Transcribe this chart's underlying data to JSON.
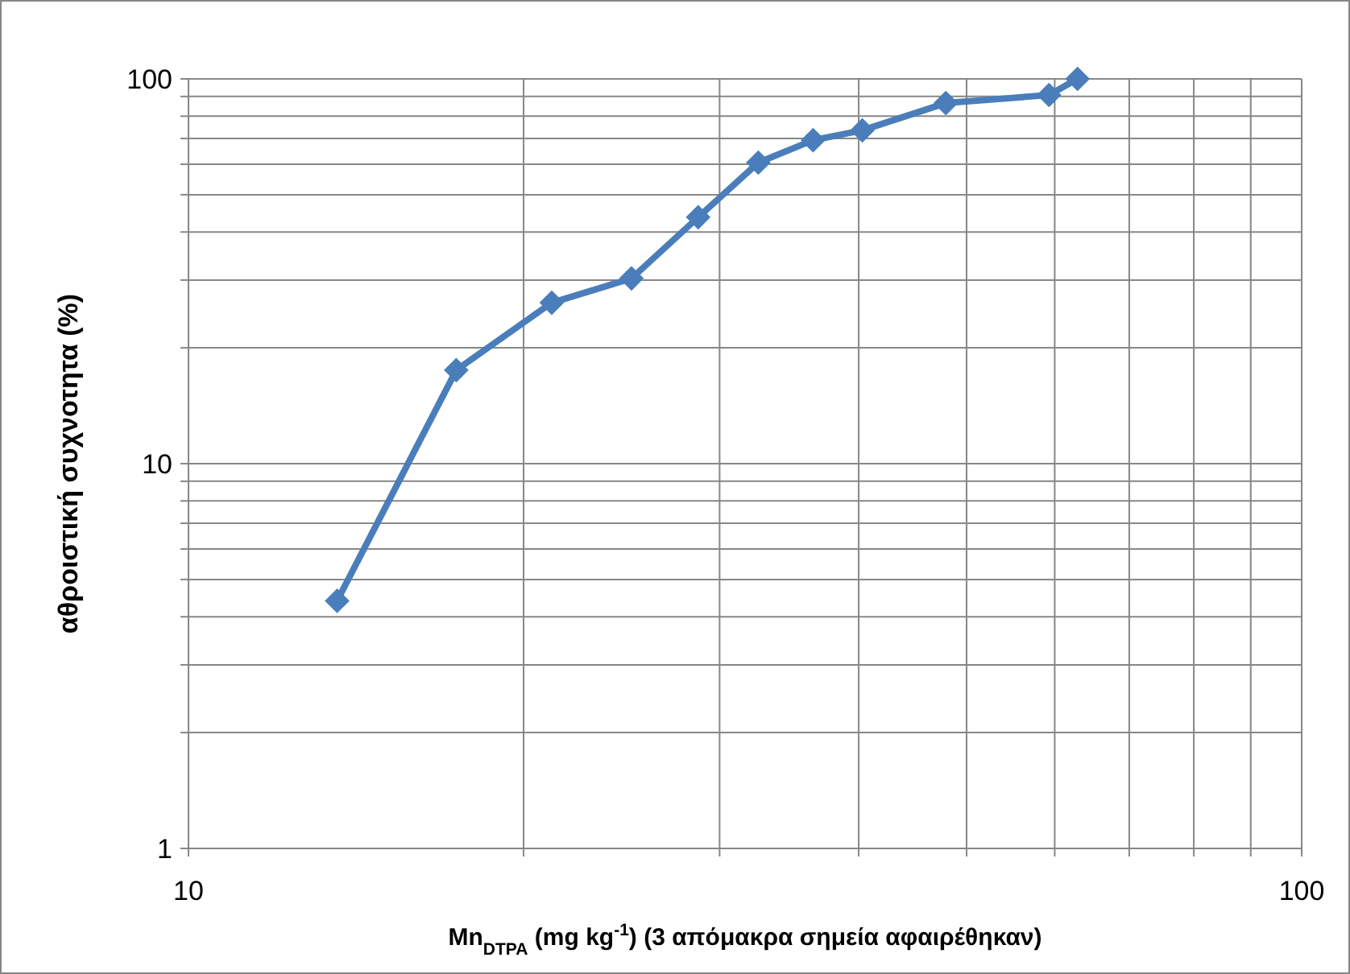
{
  "chart_data": {
    "type": "line",
    "xlabel": "Mn$_{DTPA}$ (mg kg$^{-1}$) (3 απόμακρα σημεία αφαιρέθηκαν)",
    "ylabel": "αθροιστική συχνοτητα (%)",
    "x": [
      13.6,
      17.4,
      21.2,
      25.0,
      28.7,
      32.5,
      36.4,
      40.3,
      47.9,
      59.3,
      62.9
    ],
    "series": [
      {
        "color": "#4a7ebb",
        "values": [
          4.4,
          17.5,
          26.2,
          30.3,
          43.7,
          60.6,
          69.3,
          73.5,
          86.5,
          90.8,
          100
        ]
      }
    ],
    "log": "xy",
    "xlim": [
      10,
      100
    ],
    "ylim": [
      1,
      100
    ],
    "xticks": [
      10,
      {
        "value": 20,
        "label": null
      },
      {
        "value": 30,
        "label": null
      },
      {
        "value": 40,
        "label": null
      },
      {
        "value": 50,
        "label": null
      },
      {
        "value": 60,
        "label": null
      },
      {
        "value": 70,
        "label": null
      },
      {
        "value": 80,
        "label": null
      },
      {
        "value": 90,
        "label": null
      },
      100
    ],
    "yticks": [
      1,
      {
        "value": 2,
        "label": null
      },
      {
        "value": 3,
        "label": null
      },
      {
        "value": 4,
        "label": null
      },
      {
        "value": 5,
        "label": null
      },
      {
        "value": 6,
        "label": null
      },
      {
        "value": 7,
        "label": null
      },
      {
        "value": 8,
        "label": null
      },
      {
        "value": 9,
        "label": null
      },
      10,
      {
        "value": 20,
        "label": null
      },
      {
        "value": 30,
        "label": null
      },
      {
        "value": 40,
        "label": null
      },
      {
        "value": 50,
        "label": null
      },
      {
        "value": 60,
        "label": null
      },
      {
        "value": 70,
        "label": null
      },
      {
        "value": 80,
        "label": null
      },
      {
        "value": 90,
        "label": null
      },
      100
    ],
    "grid": true,
    "marker": "diamond",
    "line_style": "solid"
  }
}
